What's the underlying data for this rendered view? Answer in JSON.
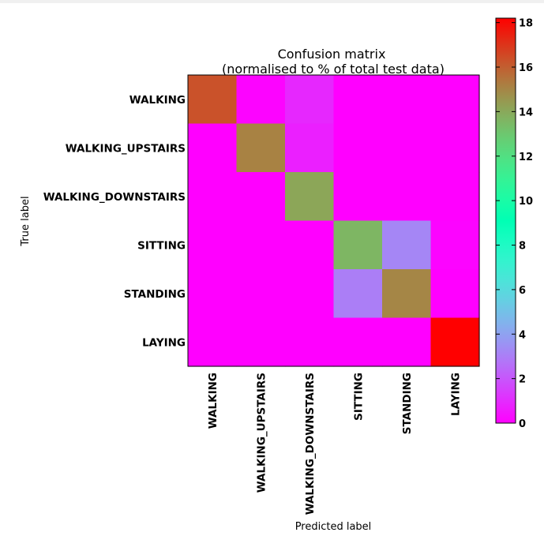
{
  "chart_data": {
    "type": "heatmap",
    "title_line1": "Confusion matrix",
    "title_line2": "(normalised to % of total test data)",
    "xlabel": "Predicted label",
    "ylabel": "True label",
    "row_labels": [
      "WALKING",
      "WALKING_UPSTAIRS",
      "WALKING_DOWNSTAIRS",
      "SITTING",
      "STANDING",
      "LAYING"
    ],
    "col_labels": [
      "WALKING",
      "WALKING_UPSTAIRS",
      "WALKING_DOWNSTAIRS",
      "SITTING",
      "STANDING",
      "LAYING"
    ],
    "values": [
      [
        16.3,
        0.1,
        0.9,
        0.0,
        0.0,
        0.0
      ],
      [
        0.0,
        15.1,
        0.7,
        0.0,
        0.0,
        0.0
      ],
      [
        0.0,
        0.0,
        14.1,
        0.0,
        0.0,
        0.0
      ],
      [
        0.0,
        0.0,
        0.0,
        13.6,
        3.2,
        0.1
      ],
      [
        0.0,
        0.0,
        0.0,
        3.0,
        15.0,
        0.0
      ],
      [
        0.0,
        0.0,
        0.0,
        0.0,
        0.0,
        18.2
      ]
    ],
    "colormap": "rainbow",
    "vmin": 0,
    "vmax": 18.2,
    "colorbar_ticks": [
      "0",
      "2",
      "4",
      "6",
      "8",
      "10",
      "12",
      "14",
      "16",
      "18"
    ]
  }
}
